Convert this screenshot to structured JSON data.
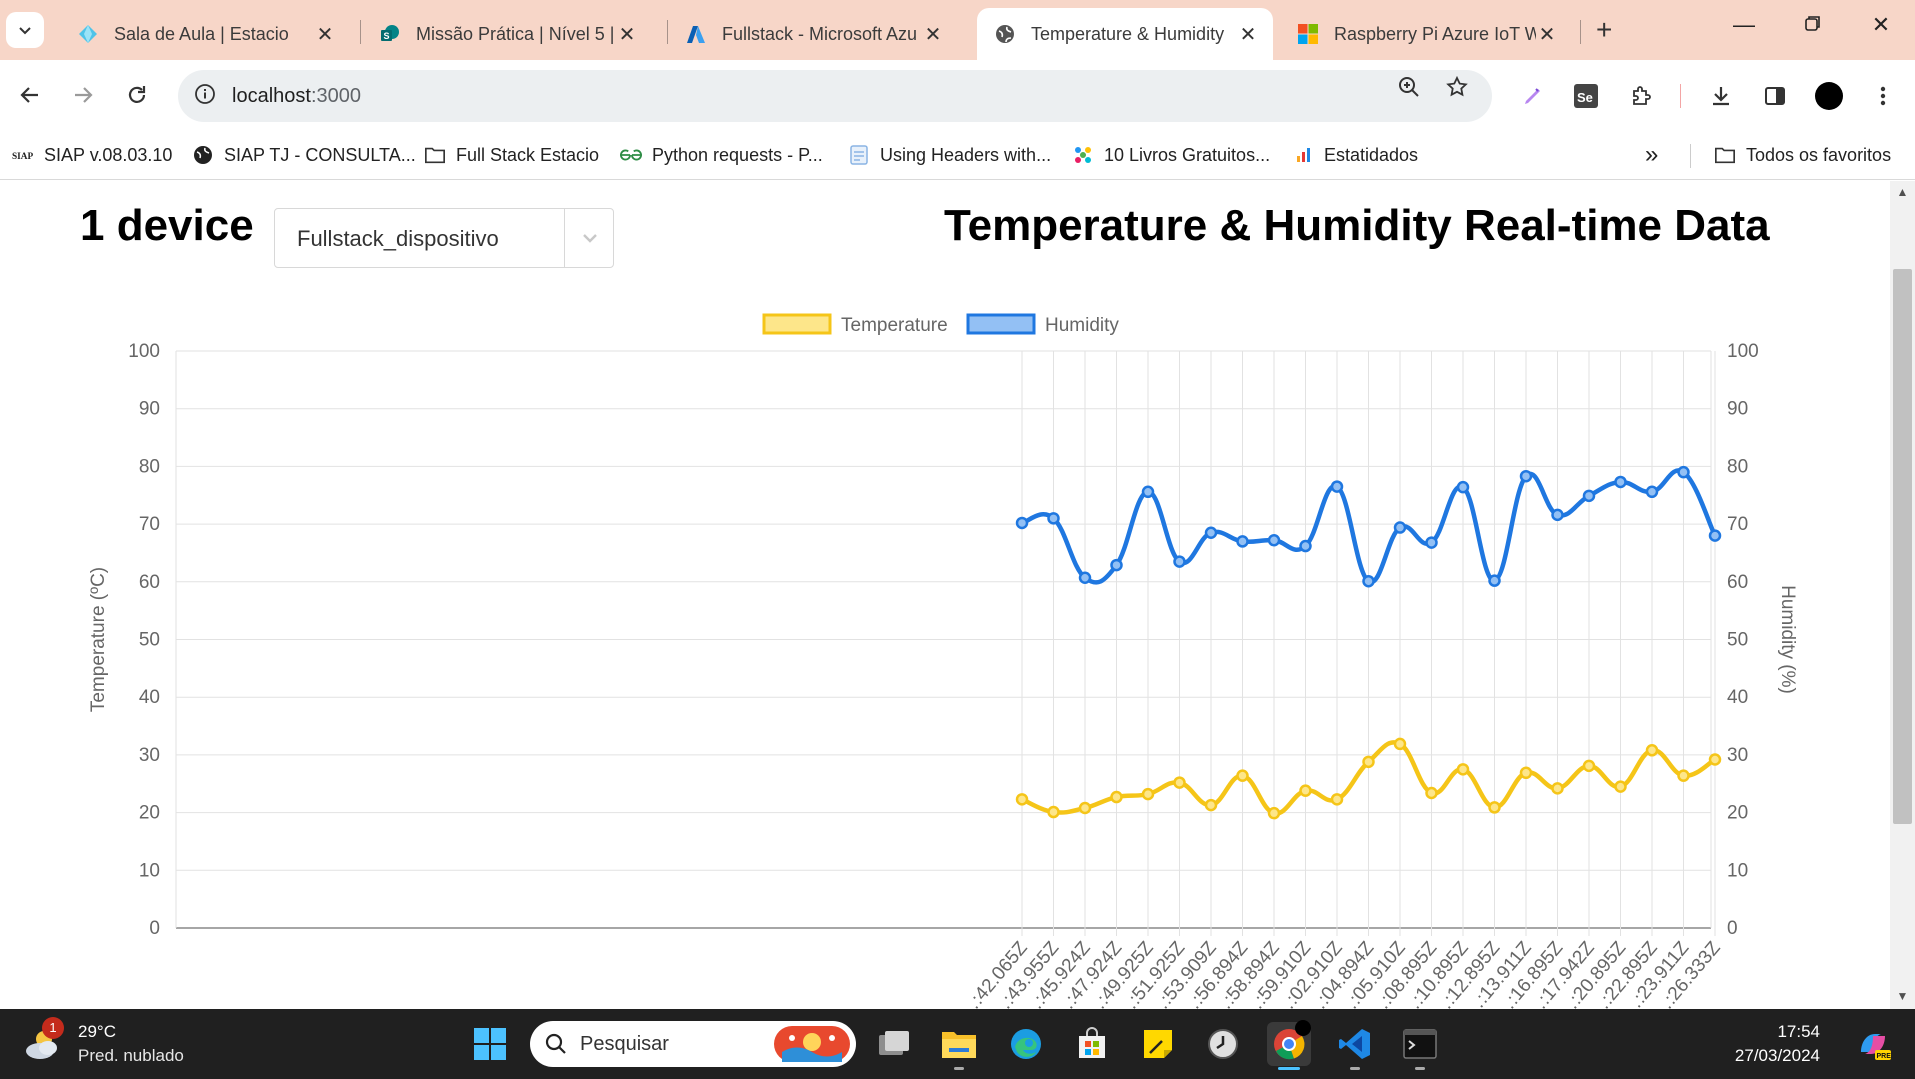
{
  "browser": {
    "tabs": [
      {
        "title": "Sala de Aula | Estacio",
        "icon": "diamond-icon",
        "active": false
      },
      {
        "title": "Missão Prática | Nível 5 |",
        "icon": "sharepoint-icon",
        "active": false
      },
      {
        "title": "Fullstack - Microsoft Azu",
        "icon": "azure-icon",
        "active": false
      },
      {
        "title": "Temperature & Humidity",
        "icon": "globe-icon",
        "active": true
      },
      {
        "title": "Raspberry Pi Azure IoT W",
        "icon": "microsoft-icon",
        "active": false
      }
    ],
    "address": {
      "host": "localhost",
      "port": ":3000"
    },
    "bookmarks": [
      {
        "label": "SIAP v.08.03.10",
        "icon": "siap-icon"
      },
      {
        "label": "SIAP TJ - CONSULTA...",
        "icon": "globe-dark-icon"
      },
      {
        "label": "Full Stack Estacio",
        "icon": "folder-icon"
      },
      {
        "label": "Python requests - P...",
        "icon": "gfg-icon"
      },
      {
        "label": "Using Headers with...",
        "icon": "page-icon"
      },
      {
        "label": "10 Livros Gratuitos...",
        "icon": "dots-icon"
      },
      {
        "label": "Estatidados",
        "icon": "bars-icon"
      }
    ],
    "all_bookmarks_label": "Todos os favoritos",
    "overflow_label": "»"
  },
  "page": {
    "device_count": "1 device",
    "device_select": "Fullstack_dispositivo",
    "title": "Temperature & Humidity Real-time Data"
  },
  "chart_data": {
    "type": "line",
    "legend": [
      "Temperature",
      "Humidity"
    ],
    "legend_position": "top",
    "y_left": {
      "label": "Temperature (ºC)",
      "lim": [
        0,
        100
      ],
      "ticks": [
        0,
        10,
        20,
        30,
        40,
        50,
        60,
        70,
        80,
        90,
        100
      ]
    },
    "y_right": {
      "label": "Humidity (%)",
      "lim": [
        0,
        100
      ],
      "ticks": [
        0,
        10,
        20,
        30,
        40,
        50,
        60,
        70,
        80,
        90,
        100
      ]
    },
    "grid": true,
    "categories": [
      "…:42.065Z",
      "…:43.955Z",
      "…:45.924Z",
      "…:47.924Z",
      "…:49.925Z",
      "…:51.925Z",
      "…:53.909Z",
      "…:56.894Z",
      "…:58.894Z",
      "…:59.910Z",
      "…:02.910Z",
      "…:04.894Z",
      "…:05.910Z",
      "…:08.895Z",
      "…:10.895Z",
      "…:12.895Z",
      "…:13.911Z",
      "…:16.895Z",
      "…:17.942Z",
      "…:20.895Z",
      "…:22.895Z",
      "…:23.911Z",
      "…:26.333Z"
    ],
    "series": [
      {
        "name": "Temperature",
        "color": "#f5c518",
        "fill": "#fde68a",
        "values": [
          22.3,
          20.1,
          20.8,
          22.7,
          23.2,
          25.2,
          21.3,
          26.4,
          19.9,
          23.8,
          22.3,
          28.8,
          31.9,
          23.4,
          27.5,
          20.9,
          26.9,
          24.2,
          28.1,
          24.5,
          30.8,
          26.4,
          29.2
        ]
      },
      {
        "name": "Humidity",
        "color": "#1f77e0",
        "fill": "#93c0f4",
        "values": [
          70.2,
          71.0,
          60.7,
          62.9,
          75.6,
          63.5,
          68.5,
          67.0,
          67.2,
          66.2,
          76.5,
          60.1,
          69.4,
          66.8,
          76.4,
          60.2,
          78.3,
          71.6,
          74.9,
          77.3,
          75.6,
          79.0,
          68.0
        ]
      }
    ]
  },
  "taskbar": {
    "weather_temp": "29°C",
    "weather_cond": "Pred. nublado",
    "weather_badge": "1",
    "search_label": "Pesquisar",
    "time": "17:54",
    "date": "27/03/2024"
  }
}
